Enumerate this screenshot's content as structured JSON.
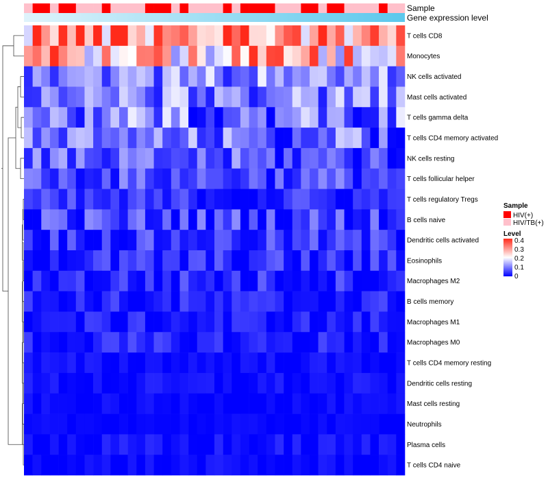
{
  "chart_data": {
    "type": "heatmap",
    "title": "",
    "rows": [
      "T cells CD8",
      "Monocytes",
      "NK cells activated",
      "Mast cells activated",
      "T cells gamma delta",
      "T cells CD4 memory activated",
      "NK cells resting",
      "T cells follicular helper",
      "T cells regulatory  Tregs",
      "B cells naive",
      "Dendritic cells activated",
      "Eosinophils",
      "Macrophages M2",
      "B cells memory",
      "Macrophages M1",
      "Macrophages M0",
      "T cells CD4 memory resting",
      "Dendritic cells resting",
      "Mast cells resting",
      "Neutrophils",
      "Plasma cells",
      "T cells CD4 naive"
    ],
    "column_count": 44,
    "row_means": [
      0.32,
      0.26,
      0.11,
      0.1,
      0.09,
      0.08,
      0.06,
      0.06,
      0.03,
      0.05,
      0.04,
      0.03,
      0.03,
      0.02,
      0.02,
      0.02,
      0.01,
      0.01,
      0.005,
      0.005,
      0.01,
      0.005
    ],
    "row_spread": [
      0.09,
      0.09,
      0.05,
      0.05,
      0.06,
      0.05,
      0.045,
      0.035,
      0.03,
      0.04,
      0.03,
      0.03,
      0.03,
      0.025,
      0.02,
      0.025,
      0.01,
      0.012,
      0.008,
      0.005,
      0.015,
      0.012
    ],
    "sample_groups": [
      "HIV(+)",
      "HIV(+)",
      "HIV/TB(+)"
    ],
    "annotations": {
      "sample_label": "Sample",
      "expression_label": "Gene expression level"
    },
    "legend": {
      "sample_title": "Sample",
      "sample_entries": [
        {
          "label": "HIV(+)",
          "color": "#ff0000"
        },
        {
          "label": "HIV/TB(+)",
          "color": "#ffc0cb"
        }
      ],
      "level_title": "Level",
      "level_ticks": [
        "0.4",
        "0.3",
        "0.2",
        "0.1",
        "0"
      ],
      "level_range": [
        0,
        0.4
      ]
    },
    "colors": {
      "low": "#0000ff",
      "mid": "#ffffff",
      "high": "#ff2a1a",
      "expression_start": "#dff3fb",
      "expression_end": "#5bc8ec"
    }
  }
}
